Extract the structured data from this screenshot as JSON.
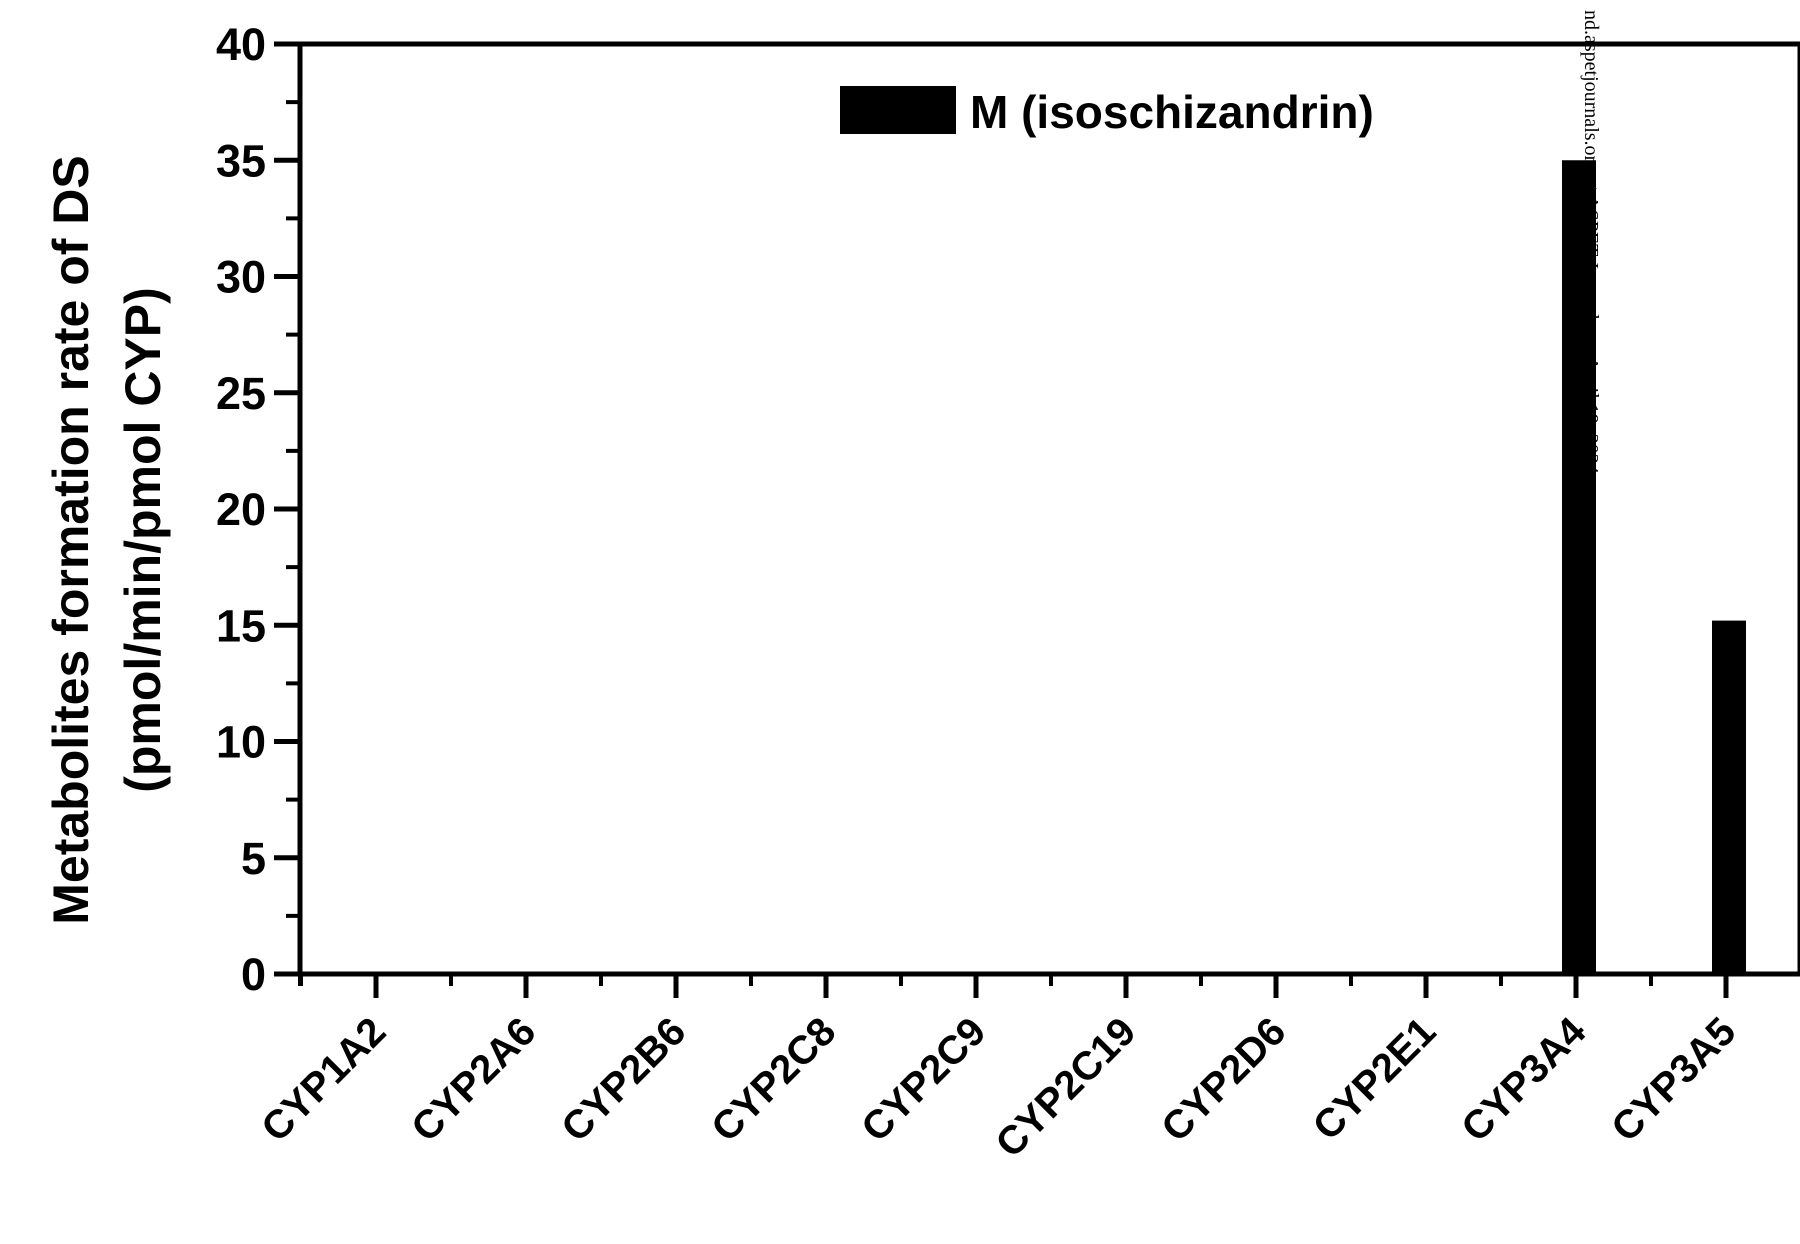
{
  "chart_data": {
    "type": "bar",
    "title": "",
    "xlabel": "",
    "ylabel_line1": "Metabolites formation rate of DS",
    "ylabel_line2": "(pmol/min/pmol CYP)",
    "categories": [
      "CYP1A2",
      "CYP2A6",
      "CYP2B6",
      "CYP2C8",
      "CYP2C9",
      "CYP2C19",
      "CYP2D6",
      "CYP2E1",
      "CYP3A4",
      "CYP3A5"
    ],
    "series": [
      {
        "name": "M (isoschizandrin)",
        "values": [
          0,
          0,
          0,
          0,
          0,
          0,
          0,
          0,
          35,
          15.2
        ],
        "color": "#000000"
      }
    ],
    "ylim": [
      0,
      40
    ],
    "yticks": [
      "0",
      "5",
      "10",
      "15",
      "20",
      "25",
      "30",
      "35",
      "40"
    ],
    "grid": false,
    "legend_position": "top-center"
  },
  "watermark": "nd.aspetjournals.org at ASPET Journals on April 19, 2024"
}
